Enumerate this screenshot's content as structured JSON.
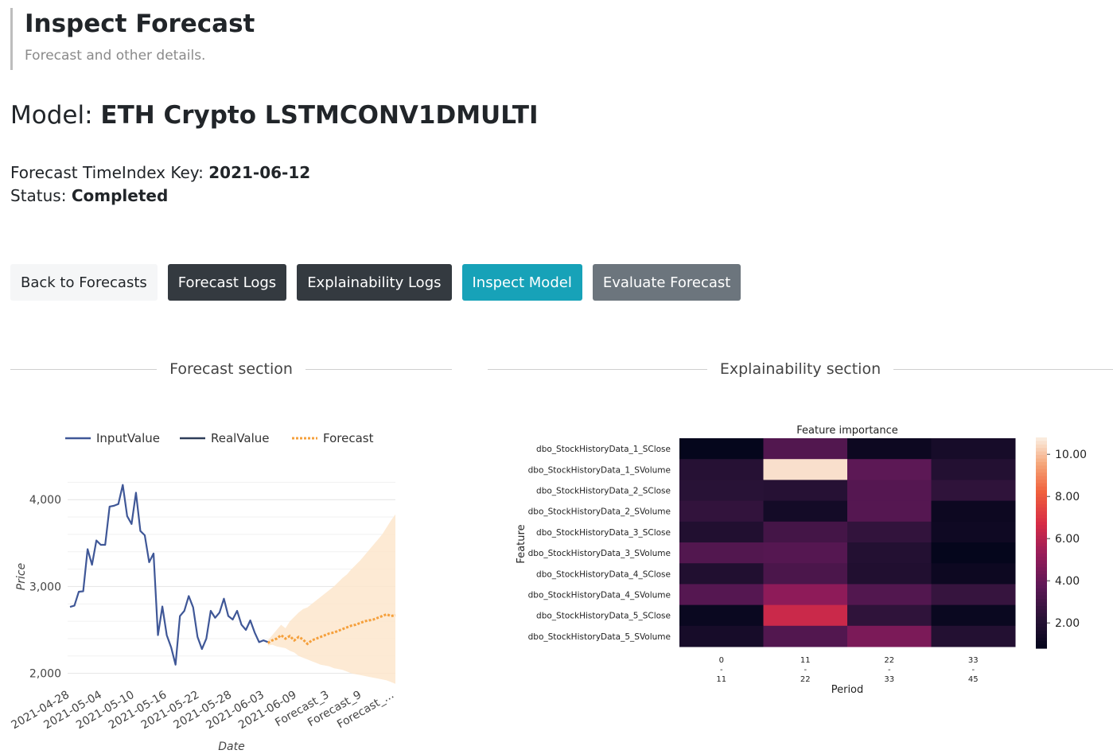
{
  "header": {
    "title": "Inspect Forecast",
    "subtitle": "Forecast and other details."
  },
  "model": {
    "label": "Model:",
    "name": "ETH Crypto LSTMCONV1DMULTI"
  },
  "forecast_info": {
    "key_label": "Forecast TimeIndex Key:",
    "key_value": "2021-06-12",
    "status_label": "Status:",
    "status_value": "Completed"
  },
  "buttons": {
    "back": "Back to Forecasts",
    "logs": "Forecast Logs",
    "explain_logs": "Explainability Logs",
    "inspect_model": "Inspect Model",
    "evaluate": "Evaluate Forecast"
  },
  "sections": {
    "forecast": "Forecast section",
    "explainability": "Explainability section"
  },
  "colors": {
    "input": "#3f5797",
    "real": "#2e3d59",
    "forecast": "#f5a03c",
    "band": "#fde6cc"
  },
  "chart_data": [
    {
      "type": "line",
      "title": "",
      "xlabel": "Date",
      "ylabel": "Price",
      "ylim": [
        1850,
        4350
      ],
      "yticks": [
        2000,
        3000,
        4000
      ],
      "ytick_labels": [
        "2,000",
        "3,000",
        "4,000"
      ],
      "legend": [
        "InputValue",
        "RealValue",
        "Forecast"
      ],
      "legend_position": "top",
      "xtick_labels": [
        "2021-04-28",
        "2021-05-04",
        "2021-05-10",
        "2021-05-16",
        "2021-05-22",
        "2021-05-28",
        "2021-06-03",
        "2021-06-09",
        "Forecast_3",
        "Forecast_9",
        "Forecast_..."
      ],
      "series": [
        {
          "name": "InputValue",
          "values": [
            2765,
            2780,
            2940,
            2945,
            3430,
            3250,
            3530,
            3480,
            3480,
            3920,
            3930,
            3950,
            4170,
            3810,
            3720,
            4080,
            3640,
            3590,
            3280,
            3380,
            2440,
            2770,
            2440,
            2300,
            2100,
            2660,
            2720,
            2890,
            2760,
            2420,
            2280,
            2400,
            2720,
            2640,
            2700,
            2860,
            2660,
            2620,
            2720,
            2560,
            2500,
            2610,
            2470,
            2360,
            2380,
            2360
          ]
        },
        {
          "name": "Forecast",
          "values": [
            2350,
            2380,
            2400,
            2440,
            2400,
            2430,
            2380,
            2420,
            2390,
            2340,
            2380,
            2400,
            2420,
            2440,
            2460,
            2470,
            2490,
            2510,
            2530,
            2550,
            2560,
            2580,
            2600,
            2610,
            2620,
            2640,
            2660,
            2680,
            2660,
            2670
          ]
        },
        {
          "name": "Forecast band upper",
          "values": [
            2380,
            2440,
            2500,
            2560,
            2520,
            2600,
            2650,
            2700,
            2740,
            2760,
            2800,
            2840,
            2880,
            2920,
            2960,
            3000,
            3050,
            3100,
            3140,
            3200,
            3250,
            3300,
            3360,
            3420,
            3480,
            3540,
            3600,
            3680,
            3760,
            3830
          ]
        },
        {
          "name": "Forecast band lower",
          "values": [
            2320,
            2330,
            2310,
            2300,
            2290,
            2260,
            2240,
            2200,
            2180,
            2160,
            2140,
            2120,
            2100,
            2090,
            2080,
            2060,
            2050,
            2040,
            2020,
            2000,
            1990,
            1980,
            1970,
            1960,
            1950,
            1940,
            1930,
            1920,
            1900,
            1880
          ]
        }
      ]
    },
    {
      "type": "heatmap",
      "title": "Feature importance",
      "xlabel": "Period",
      "ylabel": "Feature",
      "x_labels_top": [
        "0",
        "11",
        "22",
        "33"
      ],
      "x_labels_bottom": [
        "11",
        "22",
        "33",
        "45"
      ],
      "y_labels": [
        "dbo_StockHistoryData_1_SClose",
        "dbo_StockHistoryData_1_SVolume",
        "dbo_StockHistoryData_2_SClose",
        "dbo_StockHistoryData_2_SVolume",
        "dbo_StockHistoryData_3_SClose",
        "dbo_StockHistoryData_3_SVolume",
        "dbo_StockHistoryData_4_SClose",
        "dbo_StockHistoryData_4_SVolume",
        "dbo_StockHistoryData_5_SClose",
        "dbo_StockHistoryData_5_SVolume"
      ],
      "values": [
        [
          0.9,
          3.5,
          1.2,
          1.6
        ],
        [
          2.2,
          10.6,
          3.8,
          2.1
        ],
        [
          2.3,
          2.2,
          3.6,
          2.5
        ],
        [
          2.6,
          1.5,
          3.6,
          1.2
        ],
        [
          2.0,
          3.1,
          2.6,
          1.3
        ],
        [
          3.5,
          3.6,
          2.1,
          0.9
        ],
        [
          2.0,
          3.3,
          2.0,
          1.2
        ],
        [
          3.6,
          5.1,
          3.5,
          2.7
        ],
        [
          1.1,
          6.5,
          2.5,
          1.1
        ],
        [
          1.6,
          3.5,
          4.6,
          2.1
        ]
      ],
      "colorbar_ticks": [
        2,
        4,
        6,
        8,
        10
      ],
      "colorbar_labels": [
        "2.00",
        "4.00",
        "6.00",
        "8.00",
        "10.00"
      ],
      "vmin": 0.8,
      "vmax": 10.8
    }
  ]
}
